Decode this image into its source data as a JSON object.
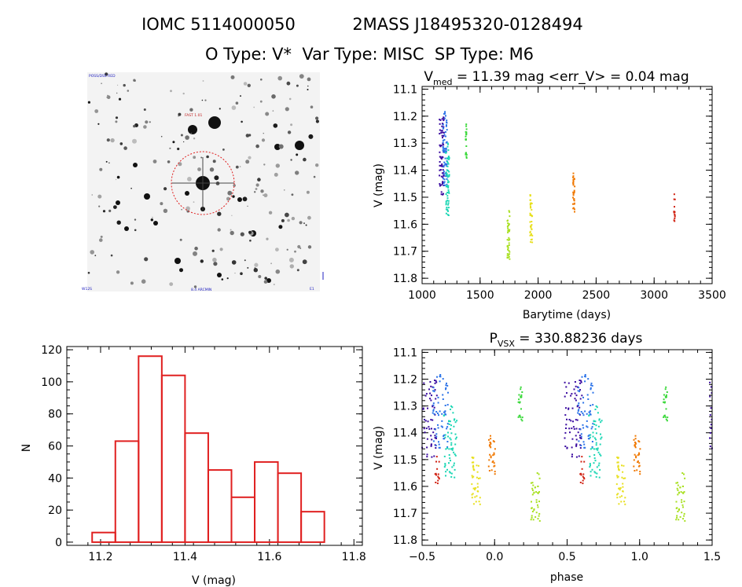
{
  "header": {
    "line1_left": "IOMC 5114000050",
    "line1_right": "2MASS J18495320-0128494",
    "line2": "O Type: V*  Var Type: MISC  SP Type: M6"
  },
  "colors": {
    "hist_bar": "#e02020",
    "axes": "#000000",
    "circle": "#e02020"
  },
  "image_panel": {
    "label_top_left": "POSS/DSS RED",
    "label_target": "FAST 1.01",
    "label_bottom_left": "W12S",
    "label_bottom_center": "8.4 ARCMIN",
    "label_bottom_right": "E1"
  },
  "chart_data": [
    {
      "type": "histogram",
      "xlabel": "V (mag)",
      "ylabel": "N",
      "xlim": [
        11.12,
        11.82
      ],
      "ylim": [
        -2,
        122
      ],
      "xticks": [
        11.2,
        11.4,
        11.6,
        11.8
      ],
      "xtick_labels": [
        "11.2",
        "11.4",
        "11.6",
        "11.8"
      ],
      "yticks": [
        0,
        20,
        40,
        60,
        80,
        100,
        120
      ],
      "ytick_labels": [
        "0",
        "20",
        "40",
        "60",
        "80",
        "100",
        "120"
      ],
      "bin_edges": [
        11.18,
        11.235,
        11.29,
        11.345,
        11.4,
        11.455,
        11.51,
        11.565,
        11.62,
        11.675,
        11.73
      ],
      "counts": [
        6,
        63,
        116,
        104,
        68,
        45,
        28,
        50,
        43,
        19
      ]
    },
    {
      "type": "scatter",
      "title_main": "V",
      "title_sub": "med",
      "title_rest": " = 11.39 mag <err_V> = 0.04 mag",
      "xlabel": "Barytime (days)",
      "ylabel": "V (mag)",
      "xlim": [
        1000,
        3500
      ],
      "ylim": [
        11.82,
        11.09
      ],
      "xticks": [
        1000,
        1500,
        2000,
        2500,
        3000,
        3500
      ],
      "xtick_labels": [
        "1000",
        "1500",
        "2000",
        "2500",
        "3000",
        "3500"
      ],
      "yticks": [
        11.1,
        11.2,
        11.3,
        11.4,
        11.5,
        11.6,
        11.7,
        11.8
      ],
      "ytick_labels": [
        "11.1",
        "11.2",
        "11.3",
        "11.4",
        "11.5",
        "11.6",
        "11.7",
        "11.8"
      ],
      "clusters": [
        {
          "name": "season-1a",
          "x": [
            1150,
            1190
          ],
          "ymin": 11.2,
          "ymax": 11.5,
          "n": 70,
          "color": "#3a0aa0"
        },
        {
          "name": "season-1b",
          "x": [
            1180,
            1215
          ],
          "ymin": 11.18,
          "ymax": 11.46,
          "n": 60,
          "color": "#2a72e8"
        },
        {
          "name": "season-1c",
          "x": [
            1205,
            1235
          ],
          "ymin": 11.3,
          "ymax": 11.57,
          "n": 60,
          "color": "#19d6b4"
        },
        {
          "name": "season-2",
          "x": [
            1375,
            1385
          ],
          "ymin": 11.23,
          "ymax": 11.36,
          "n": 20,
          "color": "#38d838"
        },
        {
          "name": "season-3",
          "x": [
            1735,
            1755
          ],
          "ymin": 11.55,
          "ymax": 11.73,
          "n": 40,
          "color": "#a8e020"
        },
        {
          "name": "season-4",
          "x": [
            1930,
            1950
          ],
          "ymin": 11.49,
          "ymax": 11.67,
          "n": 40,
          "color": "#e8e020"
        },
        {
          "name": "season-5",
          "x": [
            2300,
            2315
          ],
          "ymin": 11.41,
          "ymax": 11.56,
          "n": 30,
          "color": "#f07800"
        },
        {
          "name": "season-6",
          "x": [
            3170,
            3180
          ],
          "ymin": 11.47,
          "ymax": 11.59,
          "n": 14,
          "color": "#d02010"
        }
      ]
    },
    {
      "type": "scatter",
      "title_main": "P",
      "title_sub": "VSX",
      "title_rest": " = 330.88236 days",
      "xlabel": "phase",
      "ylabel": "V (mag)",
      "xlim": [
        -0.5,
        1.5
      ],
      "ylim": [
        11.82,
        11.09
      ],
      "xticks": [
        -0.5,
        0.0,
        0.5,
        1.0,
        1.5
      ],
      "xtick_labels": [
        "−0.5",
        "0.0",
        "0.5",
        "1.0",
        "1.5"
      ],
      "yticks": [
        11.1,
        11.2,
        11.3,
        11.4,
        11.5,
        11.6,
        11.7,
        11.8
      ],
      "ytick_labels": [
        "11.1",
        "11.2",
        "11.3",
        "11.4",
        "11.5",
        "11.6",
        "11.7",
        "11.8"
      ],
      "period_days": 330.88236,
      "epoch_days": 990,
      "fold_offsets": [
        0,
        1
      ]
    }
  ]
}
